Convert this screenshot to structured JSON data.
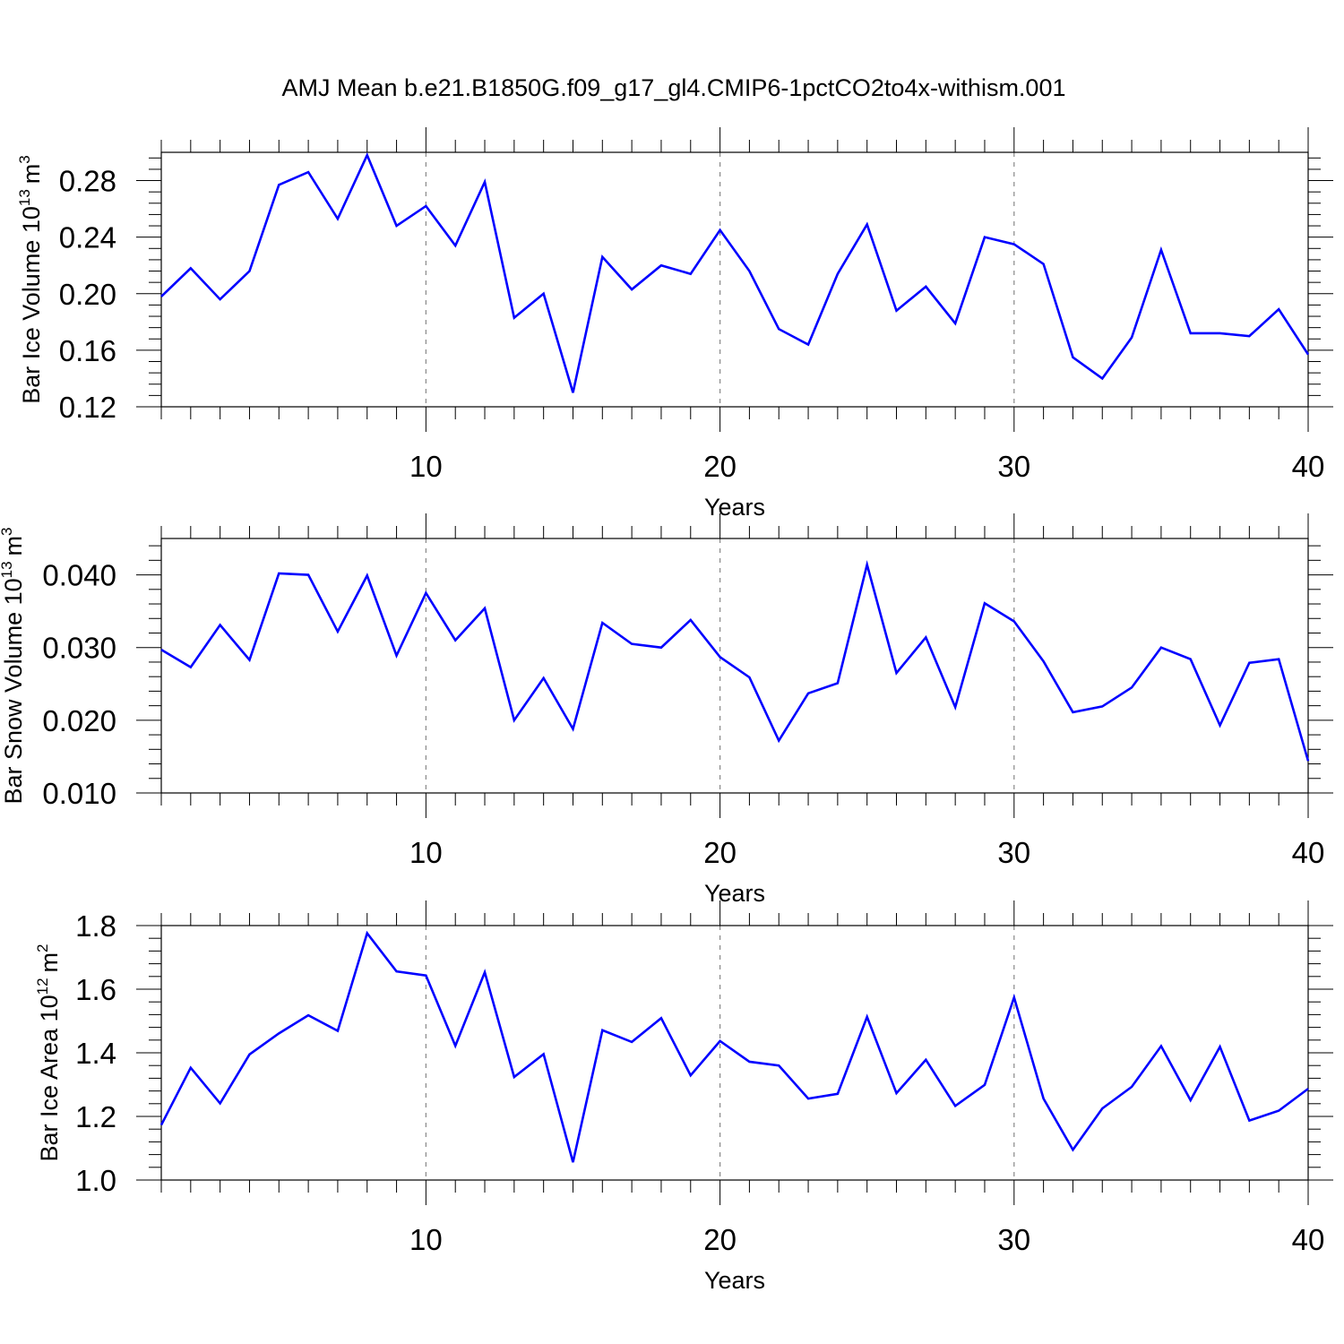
{
  "title": "AMJ Mean b.e21.B1850G.f09_g17_gl4.CMIP6-1pctCO2to4x-withism.001",
  "colors": {
    "line": "#0000ff",
    "grid": "#888888",
    "frame": "#000000"
  },
  "chart_data": [
    {
      "type": "line",
      "xlabel": "Years",
      "ylabel": "Bar Ice Volume 10",
      "ylabel_sup": "13",
      "ylabel_unit": "m",
      "ylabel_unit_sup": "3",
      "xlim": [
        1,
        40
      ],
      "ylim": [
        0.12,
        0.3
      ],
      "xticks": [
        10,
        20,
        30,
        40
      ],
      "xtick_labels": [
        "10",
        "20",
        "30",
        "40"
      ],
      "yticks": [
        0.12,
        0.16,
        0.2,
        0.24,
        0.28
      ],
      "ytick_labels": [
        "0.12",
        "0.16",
        "0.20",
        "0.24",
        "0.28"
      ],
      "grid_x": [
        10,
        20,
        30
      ],
      "x": [
        1,
        2,
        3,
        4,
        5,
        6,
        7,
        8,
        9,
        10,
        11,
        12,
        13,
        14,
        15,
        16,
        17,
        18,
        19,
        20,
        21,
        22,
        23,
        24,
        25,
        26,
        27,
        28,
        29,
        30,
        31,
        32,
        33,
        34,
        35,
        36,
        37,
        38,
        39,
        40
      ],
      "values": [
        0.198,
        0.218,
        0.196,
        0.216,
        0.277,
        0.286,
        0.253,
        0.298,
        0.248,
        0.262,
        0.234,
        0.279,
        0.183,
        0.2,
        0.13,
        0.226,
        0.203,
        0.22,
        0.214,
        0.245,
        0.216,
        0.175,
        0.164,
        0.214,
        0.249,
        0.188,
        0.205,
        0.179,
        0.24,
        0.235,
        0.221,
        0.155,
        0.14,
        0.169,
        0.231,
        0.172,
        0.172,
        0.17,
        0.189,
        0.157
      ]
    },
    {
      "type": "line",
      "xlabel": "Years",
      "ylabel": "Bar Snow Volume 10",
      "ylabel_sup": "13",
      "ylabel_unit": "m",
      "ylabel_unit_sup": "3",
      "xlim": [
        1,
        40
      ],
      "ylim": [
        0.01,
        0.045
      ],
      "xticks": [
        10,
        20,
        30,
        40
      ],
      "xtick_labels": [
        "10",
        "20",
        "30",
        "40"
      ],
      "yticks": [
        0.01,
        0.02,
        0.03,
        0.04
      ],
      "ytick_labels": [
        "0.010",
        "0.020",
        "0.030",
        "0.040"
      ],
      "grid_x": [
        10,
        20,
        30
      ],
      "x": [
        1,
        2,
        3,
        4,
        5,
        6,
        7,
        8,
        9,
        10,
        11,
        12,
        13,
        14,
        15,
        16,
        17,
        18,
        19,
        20,
        21,
        22,
        23,
        24,
        25,
        26,
        27,
        28,
        29,
        30,
        31,
        32,
        33,
        34,
        35,
        36,
        37,
        38,
        39,
        40
      ],
      "values": [
        0.0297,
        0.0273,
        0.0331,
        0.0283,
        0.0402,
        0.04,
        0.0322,
        0.0399,
        0.0289,
        0.0375,
        0.031,
        0.0354,
        0.02,
        0.0258,
        0.0188,
        0.0334,
        0.0305,
        0.03,
        0.0338,
        0.0287,
        0.0259,
        0.0172,
        0.0237,
        0.0251,
        0.0414,
        0.0265,
        0.0314,
        0.0218,
        0.0361,
        0.0336,
        0.0281,
        0.0211,
        0.0219,
        0.0245,
        0.03,
        0.0284,
        0.0193,
        0.0279,
        0.0284,
        0.0144
      ]
    },
    {
      "type": "line",
      "xlabel": "Years",
      "ylabel": "Bar Ice Area 10",
      "ylabel_sup": "12",
      "ylabel_unit": "m",
      "ylabel_unit_sup": "2",
      "xlim": [
        1,
        40
      ],
      "ylim": [
        1.0,
        1.8
      ],
      "xticks": [
        10,
        20,
        30,
        40
      ],
      "xtick_labels": [
        "10",
        "20",
        "30",
        "40"
      ],
      "yticks": [
        1.0,
        1.2,
        1.4,
        1.6,
        1.8
      ],
      "ytick_labels": [
        "1.0",
        "1.2",
        "1.4",
        "1.6",
        "1.8"
      ],
      "grid_x": [
        10,
        20,
        30
      ],
      "x": [
        1,
        2,
        3,
        4,
        5,
        6,
        7,
        8,
        9,
        10,
        11,
        12,
        13,
        14,
        15,
        16,
        17,
        18,
        19,
        20,
        21,
        22,
        23,
        24,
        25,
        26,
        27,
        28,
        29,
        30,
        31,
        32,
        33,
        34,
        35,
        36,
        37,
        38,
        39,
        40
      ],
      "values": [
        1.173,
        1.353,
        1.241,
        1.395,
        1.461,
        1.518,
        1.469,
        1.776,
        1.656,
        1.643,
        1.422,
        1.653,
        1.324,
        1.396,
        1.056,
        1.471,
        1.434,
        1.509,
        1.329,
        1.437,
        1.372,
        1.36,
        1.256,
        1.271,
        1.513,
        1.273,
        1.378,
        1.233,
        1.299,
        1.574,
        1.256,
        1.095,
        1.225,
        1.293,
        1.421,
        1.251,
        1.419,
        1.187,
        1.218,
        1.287
      ]
    }
  ]
}
